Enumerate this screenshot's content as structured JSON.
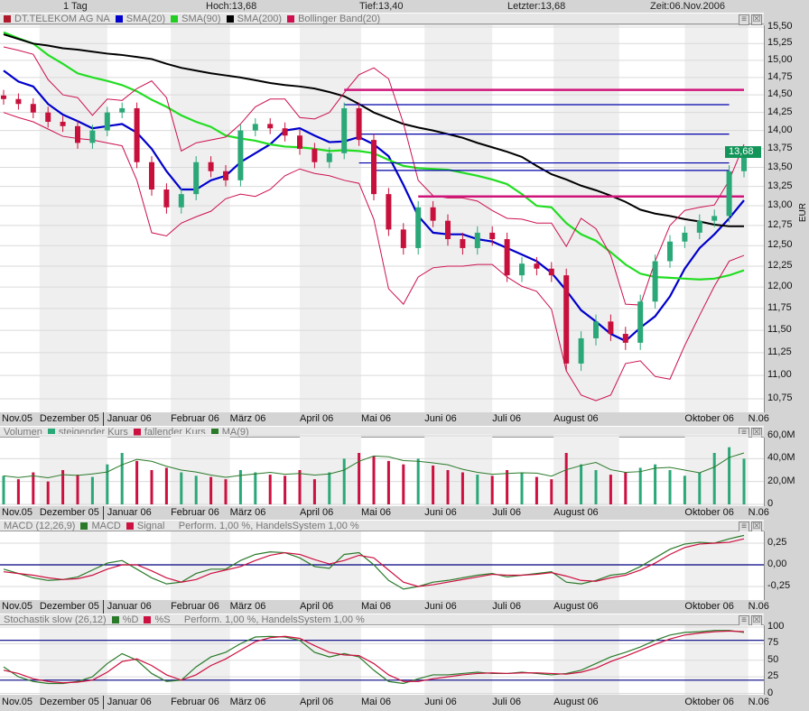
{
  "header": {
    "interval": "1 Tag",
    "high": "Hoch:13,68",
    "low": "Tief:13,40",
    "last": "Letzter:13,68",
    "time": "Zeit:06.Nov.2006"
  },
  "legends": {
    "main": [
      {
        "label": "DT.TELEKOM AG NA",
        "color": "#b0182c"
      },
      {
        "label": "SMA(20)",
        "color": "#0000cc"
      },
      {
        "label": "SMA(90)",
        "color": "#22cc22"
      },
      {
        "label": "SMA(200)",
        "color": "#000000"
      },
      {
        "label": "Bollinger Band(20)",
        "color": "#cc1050"
      }
    ],
    "volume": [
      {
        "label": "Volumen",
        "color": ""
      },
      {
        "label": "steigender Kurs",
        "color": "#2aa878"
      },
      {
        "label": "fallender Kurs",
        "color": "#cc1040"
      },
      {
        "label": "MA(9)",
        "color": "#2a7a2a"
      }
    ],
    "macd": [
      {
        "label": "MACD (12,26,9)",
        "color": ""
      },
      {
        "label": "MACD",
        "color": "#2a7a2a"
      },
      {
        "label": "Signal",
        "color": "#cc1040"
      },
      {
        "label": "Perform. 1,00 %, HandelsSystem 1,00 %",
        "color": ""
      }
    ],
    "stoch": [
      {
        "label": "Stochastik slow (26,12)",
        "color": ""
      },
      {
        "label": "%D",
        "color": "#2a7a2a"
      },
      {
        "label": "%S",
        "color": "#cc1040"
      },
      {
        "label": "Perform. 1,00 %, HandelsSystem 1,00 %",
        "color": ""
      }
    ]
  },
  "panel_buttons": {
    "menu_icon": "≡",
    "close_icon": "☒"
  },
  "current_price_label": "13,68",
  "unit_label": "EUR",
  "chart_data": [
    {
      "type": "candlestick",
      "title": "DT.TELEKOM AG NA",
      "scale": "log",
      "ylim": [
        10.75,
        15.5
      ],
      "ylabel": "EUR",
      "grid": true,
      "first_date": "2005-11-14",
      "sampling": "weekly (approximated from daily chart)",
      "yticks": [
        "15,50",
        "15,25",
        "15,00",
        "14,75",
        "14,50",
        "14,25",
        "14,00",
        "13,75",
        "13,50",
        "13,25",
        "13,00",
        "12,75",
        "12,50",
        "12,25",
        "12,00",
        "11,75",
        "11,50",
        "11,25",
        "11,00",
        "10,75"
      ],
      "months": [
        {
          "label": "Nov.05",
          "date": "2005-11-14"
        },
        {
          "label": "Dezember 05",
          "date": "2005-12-01"
        },
        {
          "label": "Januar 06",
          "date": "2006-01-02"
        },
        {
          "label": "Februar 06",
          "date": "2006-02-01"
        },
        {
          "label": "März 06",
          "date": "2006-03-01"
        },
        {
          "label": "April 06",
          "date": "2006-04-03"
        },
        {
          "label": "Mai 06",
          "date": "2006-05-02"
        },
        {
          "label": "Juni 06",
          "date": "2006-06-01"
        },
        {
          "label": "Juli 06",
          "date": "2006-07-03"
        },
        {
          "label": "August 06",
          "date": "2006-08-01"
        },
        {
          "label": "",
          "date": "2006-09-01"
        },
        {
          "label": "Oktober 06",
          "date": "2006-10-02"
        },
        {
          "label": "N.06",
          "date": "2006-11-01"
        }
      ],
      "close": [
        14.44,
        14.37,
        14.25,
        14.12,
        14.06,
        13.83,
        14.0,
        14.25,
        14.31,
        13.57,
        13.21,
        12.98,
        13.15,
        13.57,
        13.45,
        13.33,
        14.0,
        14.09,
        14.03,
        13.93,
        13.75,
        13.57,
        13.69,
        14.31,
        13.87,
        13.15,
        12.7,
        12.47,
        12.98,
        12.81,
        12.58,
        12.47,
        12.66,
        12.58,
        12.14,
        12.28,
        12.22,
        12.14,
        11.13,
        11.41,
        11.6,
        11.46,
        11.36,
        11.83,
        12.31,
        12.55,
        12.66,
        12.81,
        12.87,
        13.45,
        13.68
      ],
      "series": [
        {
          "name": "SMA(20)",
          "color": "#0000cc",
          "values": [
            14.85,
            14.69,
            14.62,
            14.37,
            14.22,
            14.13,
            14.03,
            14.06,
            14.09,
            13.97,
            13.75,
            13.45,
            13.21,
            13.21,
            13.33,
            13.39,
            13.57,
            13.69,
            13.81,
            14.0,
            14.03,
            13.93,
            13.84,
            13.85,
            13.91,
            13.81,
            13.65,
            13.27,
            12.87,
            12.66,
            12.64,
            12.64,
            12.58,
            12.55,
            12.47,
            12.39,
            12.31,
            12.17,
            11.96,
            11.73,
            11.6,
            11.46,
            11.38,
            11.53,
            11.66,
            11.89,
            12.22,
            12.47,
            12.64,
            12.84,
            13.07
          ]
        },
        {
          "name": "SMA(90)",
          "color": "#22dd22",
          "values": [
            15.42,
            15.33,
            15.25,
            15.08,
            14.95,
            14.81,
            14.75,
            14.7,
            14.64,
            14.55,
            14.43,
            14.33,
            14.21,
            14.12,
            14.05,
            13.93,
            13.89,
            13.86,
            13.81,
            13.78,
            13.77,
            13.75,
            13.72,
            13.73,
            13.72,
            13.69,
            13.6,
            13.52,
            13.49,
            13.48,
            13.47,
            13.43,
            13.39,
            13.34,
            13.28,
            13.15,
            13.0,
            12.98,
            12.78,
            12.64,
            12.56,
            12.42,
            12.27,
            12.16,
            12.12,
            12.11,
            12.1,
            12.09,
            12.1,
            12.14,
            12.2
          ]
        },
        {
          "name": "SMA(200)",
          "color": "#000000",
          "values": [
            15.39,
            15.32,
            15.25,
            15.22,
            15.18,
            15.16,
            15.13,
            15.1,
            15.08,
            15.05,
            15.02,
            14.95,
            14.89,
            14.85,
            14.81,
            14.78,
            14.75,
            14.71,
            14.67,
            14.64,
            14.62,
            14.59,
            14.54,
            14.48,
            14.37,
            14.25,
            14.17,
            14.09,
            14.04,
            14.0,
            13.95,
            13.9,
            13.83,
            13.77,
            13.71,
            13.64,
            13.52,
            13.41,
            13.34,
            13.26,
            13.2,
            13.13,
            13.05,
            12.95,
            12.9,
            12.87,
            12.83,
            12.8,
            12.76,
            12.74,
            12.74
          ]
        },
        {
          "name": "Bollinger Band(20) oben",
          "color": "#cc1050",
          "values": [
            15.2,
            15.15,
            15.09,
            14.72,
            14.5,
            14.46,
            14.21,
            14.44,
            14.42,
            14.59,
            14.7,
            14.46,
            13.72,
            13.83,
            13.87,
            13.91,
            14.09,
            14.33,
            14.44,
            14.44,
            14.18,
            14.16,
            14.25,
            14.53,
            14.79,
            14.89,
            14.73,
            14.1,
            13.33,
            13.13,
            13.1,
            13.1,
            13.06,
            12.94,
            12.84,
            12.83,
            12.78,
            12.78,
            12.49,
            12.84,
            12.71,
            12.38,
            11.8,
            11.79,
            12.31,
            12.75,
            12.94,
            12.98,
            13.01,
            13.33,
            13.81
          ]
        },
        {
          "name": "Bollinger Band(20) unten",
          "color": "#cc1050",
          "values": [
            14.25,
            14.18,
            14.12,
            14.02,
            13.92,
            13.89,
            13.87,
            13.83,
            13.79,
            13.33,
            12.66,
            12.62,
            12.78,
            12.86,
            12.93,
            13.09,
            13.15,
            13.12,
            13.21,
            13.39,
            13.48,
            13.42,
            13.39,
            13.33,
            13.29,
            12.83,
            11.98,
            11.8,
            12.12,
            12.23,
            12.25,
            12.25,
            12.27,
            12.27,
            12.12,
            12.01,
            11.95,
            11.74,
            11.05,
            10.79,
            10.73,
            10.79,
            11.13,
            11.16,
            10.99,
            10.96,
            11.33,
            11.67,
            12.01,
            12.31,
            12.38
          ]
        }
      ],
      "hlines": [
        {
          "value": 14.57,
          "color": "#d0157a",
          "from": "2006-04-24",
          "to": "2006-10-30",
          "thick": true
        },
        {
          "value": 14.36,
          "color": "#0000aa",
          "from": "2006-04-24",
          "to": "2006-10-23"
        },
        {
          "value": 13.95,
          "color": "#0000aa",
          "from": "2006-05-01",
          "to": "2006-10-23"
        },
        {
          "value": 13.56,
          "color": "#0000aa",
          "from": "2006-05-01",
          "to": "2006-10-23"
        },
        {
          "value": 13.46,
          "color": "#0000aa",
          "from": "2006-05-08",
          "to": "2006-10-23"
        },
        {
          "value": 13.12,
          "color": "#d0157a",
          "from": "2006-05-29",
          "to": "2006-10-30",
          "thick": true
        }
      ]
    },
    {
      "type": "bar",
      "title": "Volumen",
      "ylim": [
        0,
        60
      ],
      "yticks": [
        "60,0M",
        "40,0M",
        "20,0M",
        "0"
      ],
      "values_millions": [
        25,
        22,
        28,
        20,
        30,
        26,
        24,
        35,
        45,
        38,
        30,
        32,
        28,
        25,
        24,
        22,
        30,
        28,
        26,
        25,
        30,
        22,
        28,
        40,
        45,
        42,
        38,
        35,
        40,
        34,
        30,
        28,
        26,
        25,
        30,
        28,
        24,
        22,
        45,
        35,
        30,
        26,
        28,
        32,
        35,
        30,
        25,
        28,
        45,
        50,
        40
      ],
      "ma_label": "MA(9)"
    },
    {
      "type": "line",
      "title": "MACD (12,26,9)",
      "ylim": [
        -0.35,
        0.4
      ],
      "yticks": [
        "0,25",
        "0,00",
        "-0,25"
      ],
      "zero_line": 0,
      "series": [
        {
          "name": "MACD",
          "color": "#2a7a2a",
          "values": [
            -0.05,
            -0.1,
            -0.15,
            -0.18,
            -0.17,
            -0.14,
            -0.06,
            0.02,
            0.05,
            -0.05,
            -0.15,
            -0.22,
            -0.2,
            -0.1,
            -0.05,
            -0.05,
            0.05,
            0.12,
            0.15,
            0.14,
            0.08,
            -0.02,
            -0.04,
            0.12,
            0.14,
            0.0,
            -0.18,
            -0.28,
            -0.25,
            -0.2,
            -0.18,
            -0.15,
            -0.12,
            -0.1,
            -0.14,
            -0.12,
            -0.1,
            -0.08,
            -0.2,
            -0.22,
            -0.18,
            -0.12,
            -0.1,
            -0.02,
            0.08,
            0.18,
            0.24,
            0.26,
            0.25,
            0.3,
            0.34
          ]
        },
        {
          "name": "Signal",
          "color": "#cc1040",
          "values": [
            -0.08,
            -0.1,
            -0.12,
            -0.15,
            -0.17,
            -0.16,
            -0.12,
            -0.05,
            0.0,
            0.0,
            -0.07,
            -0.15,
            -0.2,
            -0.17,
            -0.1,
            -0.06,
            -0.02,
            0.05,
            0.11,
            0.14,
            0.12,
            0.06,
            0.01,
            0.05,
            0.11,
            0.08,
            -0.06,
            -0.2,
            -0.25,
            -0.23,
            -0.2,
            -0.17,
            -0.14,
            -0.11,
            -0.12,
            -0.12,
            -0.11,
            -0.09,
            -0.13,
            -0.18,
            -0.19,
            -0.15,
            -0.12,
            -0.06,
            0.02,
            0.12,
            0.2,
            0.24,
            0.25,
            0.26,
            0.3
          ]
        }
      ]
    },
    {
      "type": "line",
      "title": "Stochastik slow (26,12)",
      "ylim": [
        0,
        100
      ],
      "yticks": [
        "100",
        "75",
        "50",
        "25",
        "0"
      ],
      "ref_lines": [
        80,
        20
      ],
      "series": [
        {
          "name": "%D",
          "color": "#2a7a2a",
          "values": [
            40,
            25,
            18,
            15,
            15,
            18,
            25,
            45,
            60,
            50,
            30,
            18,
            20,
            40,
            55,
            62,
            75,
            85,
            86,
            85,
            80,
            62,
            55,
            60,
            55,
            35,
            18,
            15,
            22,
            28,
            28,
            30,
            32,
            30,
            30,
            32,
            30,
            28,
            30,
            35,
            45,
            55,
            62,
            70,
            80,
            88,
            92,
            93,
            95,
            95,
            92
          ]
        },
        {
          "name": "%S",
          "color": "#cc1040",
          "values": [
            35,
            30,
            22,
            18,
            16,
            17,
            20,
            32,
            48,
            52,
            42,
            28,
            20,
            28,
            42,
            52,
            65,
            78,
            84,
            86,
            83,
            72,
            62,
            58,
            57,
            45,
            28,
            18,
            18,
            22,
            25,
            28,
            30,
            31,
            30,
            31,
            31,
            30,
            29,
            32,
            38,
            48,
            56,
            65,
            74,
            82,
            88,
            91,
            93,
            94,
            93
          ]
        }
      ]
    }
  ]
}
